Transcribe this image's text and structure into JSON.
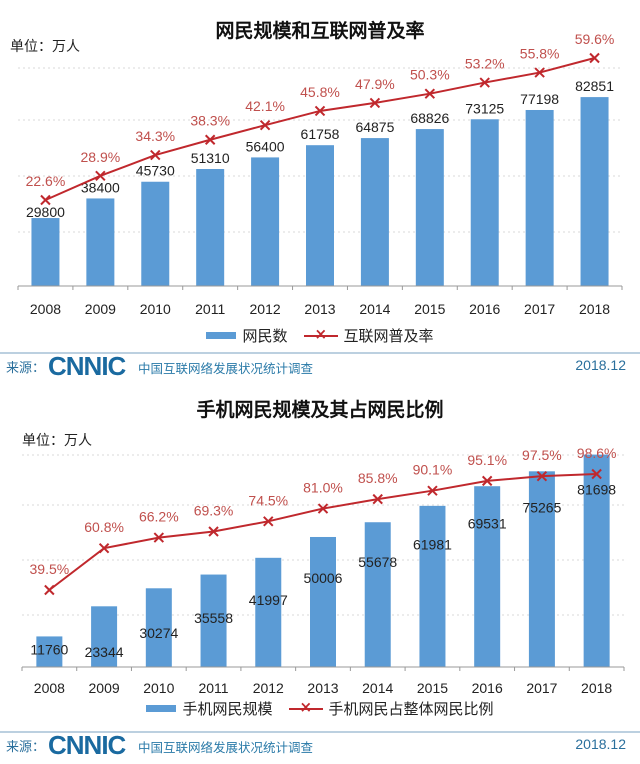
{
  "chart_data": [
    {
      "type": "bar",
      "title": "网民规模和互联网普及率",
      "unit_label": "单位：万人",
      "categories": [
        "2008",
        "2009",
        "2010",
        "2011",
        "2012",
        "2013",
        "2014",
        "2015",
        "2016",
        "2017",
        "2018"
      ],
      "series": [
        {
          "name": "网民数",
          "kind": "bar",
          "color": "#5b9bd5",
          "values": [
            29800,
            38400,
            45730,
            51310,
            56400,
            61758,
            64875,
            68826,
            73125,
            77198,
            82851
          ]
        },
        {
          "name": "互联网普及率",
          "kind": "line",
          "color": "#c0282d",
          "unit": "%",
          "values": [
            22.6,
            28.9,
            34.3,
            38.3,
            42.1,
            45.8,
            47.9,
            50.3,
            53.2,
            55.8,
            59.6
          ]
        }
      ],
      "legend": "bottom",
      "grid": true
    },
    {
      "type": "bar",
      "title": "手机网民规模及其占网民比例",
      "unit_label": "单位：万人",
      "categories": [
        "2008",
        "2009",
        "2010",
        "2011",
        "2012",
        "2013",
        "2014",
        "2015",
        "2016",
        "2017",
        "2018"
      ],
      "series": [
        {
          "name": "手机网民规模",
          "kind": "bar",
          "color": "#5b9bd5",
          "values": [
            11760,
            23344,
            30274,
            35558,
            41997,
            50006,
            55678,
            61981,
            69531,
            75265,
            81698
          ]
        },
        {
          "name": "手机网民占整体网民比例",
          "kind": "line",
          "color": "#c0282d",
          "unit": "%",
          "values": [
            39.5,
            60.8,
            66.2,
            69.3,
            74.5,
            81.0,
            85.8,
            90.1,
            95.1,
            97.5,
            98.6
          ]
        }
      ],
      "legend": "bottom",
      "grid": true
    }
  ],
  "footer": {
    "source_label": "来源：",
    "logo": "CNNIC",
    "survey": "中国互联网络发展状况统计调查",
    "date": "2018.12"
  }
}
